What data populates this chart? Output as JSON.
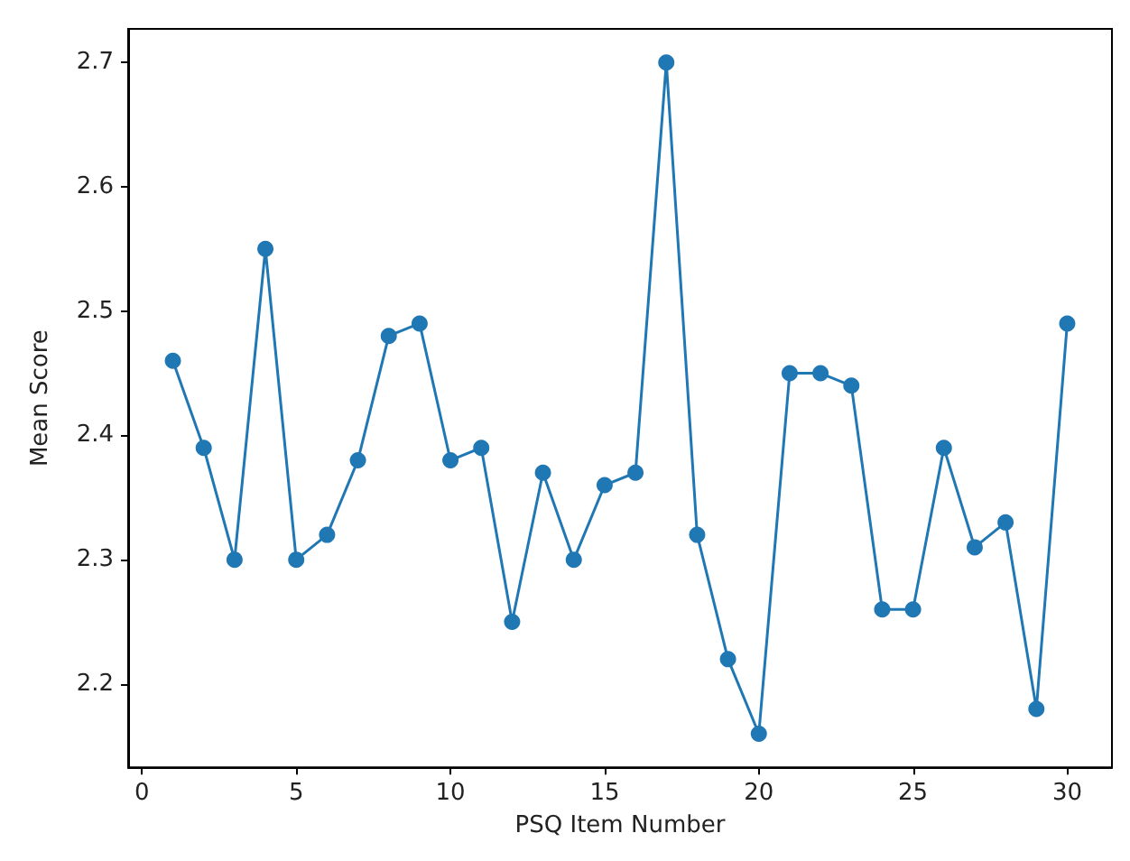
{
  "chart_data": {
    "type": "line",
    "xlabel": "PSQ Item Number",
    "ylabel": "Mean Score",
    "x": [
      1,
      2,
      3,
      4,
      5,
      6,
      7,
      8,
      9,
      10,
      11,
      12,
      13,
      14,
      15,
      16,
      17,
      18,
      19,
      20,
      21,
      22,
      23,
      24,
      25,
      26,
      27,
      28,
      29,
      30
    ],
    "series": [
      {
        "color": "#1f77b4",
        "values": [
          2.46,
          2.39,
          2.3,
          2.55,
          2.3,
          2.32,
          2.38,
          2.48,
          2.49,
          2.38,
          2.39,
          2.25,
          2.37,
          2.3,
          2.36,
          2.37,
          2.7,
          2.32,
          2.22,
          2.16,
          2.45,
          2.45,
          2.44,
          2.26,
          2.26,
          2.39,
          2.31,
          2.33,
          2.18,
          2.49
        ]
      }
    ],
    "xlim": [
      -0.45,
      31.45
    ],
    "ylim": [
      2.133,
      2.727
    ],
    "xticks": [
      0,
      5,
      10,
      15,
      20,
      25,
      30
    ],
    "yticks": [
      2.2,
      2.3,
      2.4,
      2.5,
      2.6,
      2.7
    ],
    "grid": false,
    "marker": "circle",
    "line_style": "solid"
  }
}
